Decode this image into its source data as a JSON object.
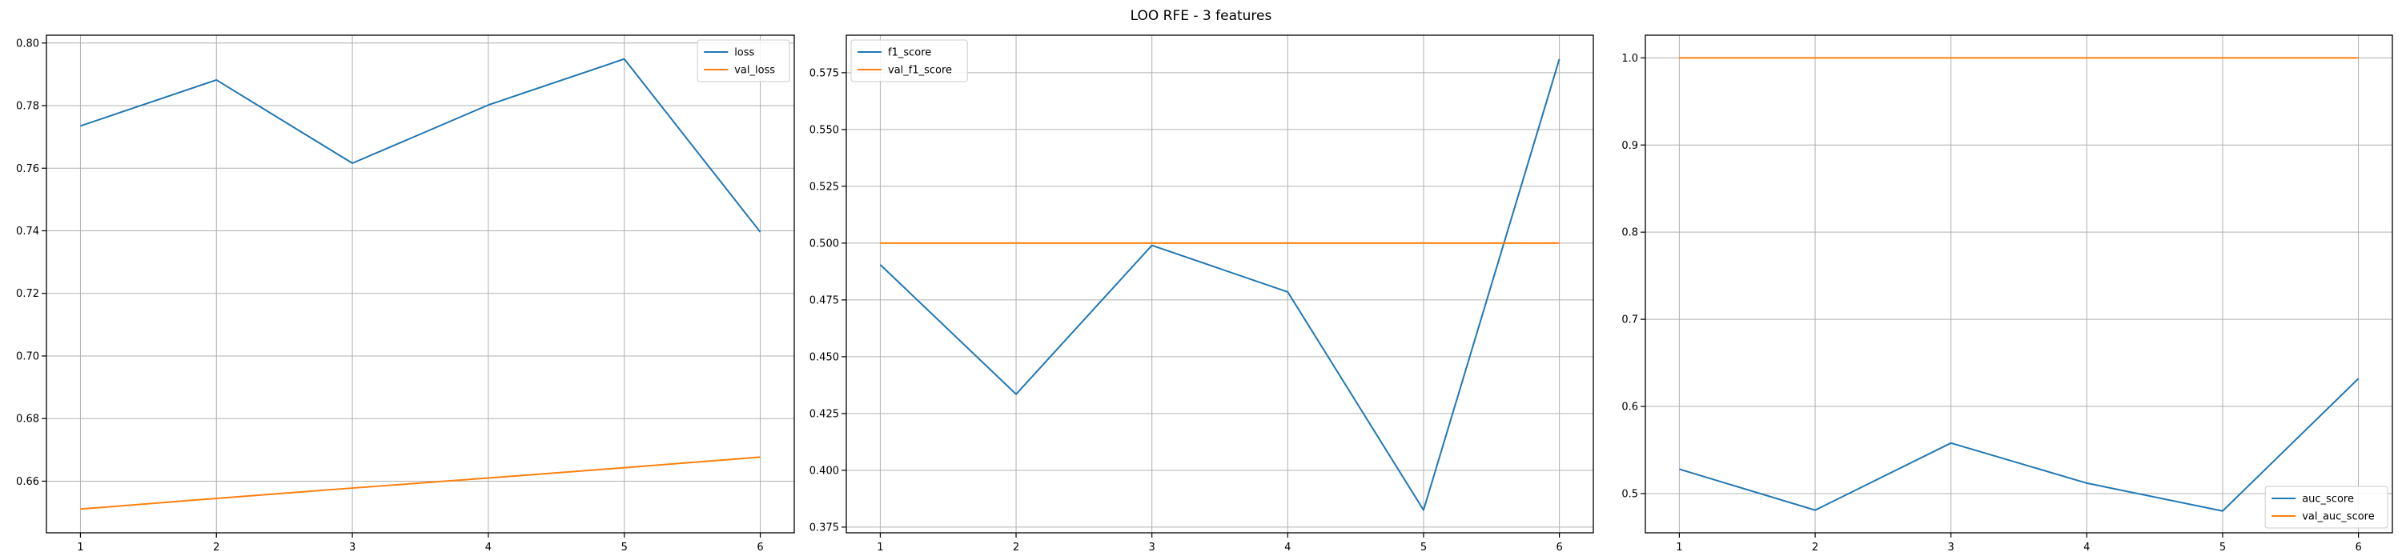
{
  "figure": {
    "title": "LOO RFE - 3 features"
  },
  "colors": {
    "blue": "#1f77b4",
    "orange": "#ff7f0e",
    "grid": "#b0b0b0",
    "axis": "#000000"
  },
  "chart_data": [
    {
      "type": "line",
      "title": "",
      "xlabel": "",
      "ylabel": "",
      "x": [
        1,
        2,
        3,
        4,
        5,
        6
      ],
      "xticks": [
        1,
        2,
        3,
        4,
        5,
        6
      ],
      "yticks": [
        0.66,
        0.68,
        0.7,
        0.72,
        0.74,
        0.76,
        0.78,
        0.8
      ],
      "ytick_labels": [
        "0.66",
        "0.68",
        "0.70",
        "0.72",
        "0.74",
        "0.76",
        "0.78",
        "0.80"
      ],
      "xlim": [
        0.75,
        6.25
      ],
      "ylim": [
        0.6435,
        0.8025
      ],
      "grid": true,
      "legend_position": "upper right",
      "series": [
        {
          "name": "loss",
          "color": "#1f77b4",
          "values": [
            0.7735,
            0.7882,
            0.7616,
            0.7802,
            0.7949,
            0.7396
          ]
        },
        {
          "name": "val_loss",
          "color": "#ff7f0e",
          "values": [
            0.6511,
            0.6545,
            0.6578,
            0.661,
            0.6643,
            0.6677
          ]
        }
      ]
    },
    {
      "type": "line",
      "title": "",
      "xlabel": "",
      "ylabel": "",
      "x": [
        1,
        2,
        3,
        4,
        5,
        6
      ],
      "xticks": [
        1,
        2,
        3,
        4,
        5,
        6
      ],
      "yticks": [
        0.375,
        0.4,
        0.425,
        0.45,
        0.475,
        0.5,
        0.525,
        0.55,
        0.575
      ],
      "ytick_labels": [
        "0.375",
        "0.400",
        "0.425",
        "0.450",
        "0.475",
        "0.500",
        "0.525",
        "0.550",
        "0.575"
      ],
      "xlim": [
        0.75,
        6.25
      ],
      "ylim": [
        0.3725,
        0.5915
      ],
      "grid": true,
      "legend_position": "upper left",
      "series": [
        {
          "name": "f1_score",
          "color": "#1f77b4",
          "values": [
            0.4905,
            0.4335,
            0.499,
            0.4785,
            0.3825,
            0.581
          ]
        },
        {
          "name": "val_f1_score",
          "color": "#ff7f0e",
          "values": [
            0.5,
            0.5,
            0.5,
            0.5,
            0.5,
            0.5
          ]
        }
      ]
    },
    {
      "type": "line",
      "title": "",
      "xlabel": "",
      "ylabel": "",
      "x": [
        1,
        2,
        3,
        4,
        5,
        6
      ],
      "xticks": [
        1,
        2,
        3,
        4,
        5,
        6
      ],
      "yticks": [
        0.5,
        0.6,
        0.7,
        0.8,
        0.9,
        1.0
      ],
      "ytick_labels": [
        "0.5",
        "0.6",
        "0.7",
        "0.8",
        "0.9",
        "1.0"
      ],
      "xlim": [
        0.75,
        6.25
      ],
      "ylim": [
        0.455,
        1.026
      ],
      "grid": true,
      "legend_position": "lower right",
      "series": [
        {
          "name": "auc_score",
          "color": "#1f77b4",
          "values": [
            0.528,
            0.481,
            0.558,
            0.512,
            0.48,
            0.632
          ]
        },
        {
          "name": "val_auc_score",
          "color": "#ff7f0e",
          "values": [
            1.0,
            1.0,
            1.0,
            1.0,
            1.0,
            1.0
          ]
        }
      ]
    }
  ]
}
